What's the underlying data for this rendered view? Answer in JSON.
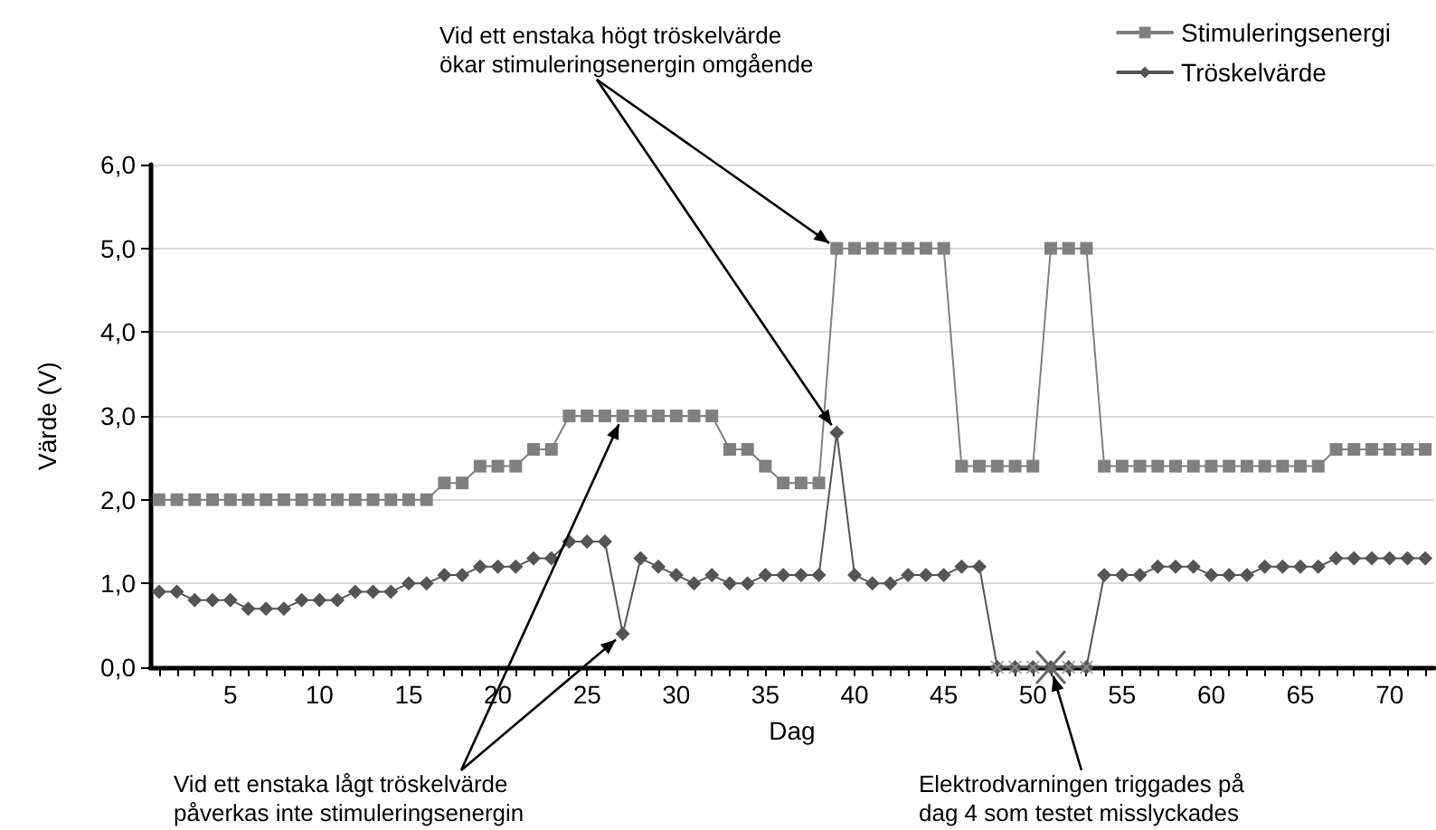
{
  "chart_data": {
    "type": "line",
    "xlabel": "Dag",
    "ylabel": "Värde (V)",
    "x": [
      1,
      2,
      3,
      4,
      5,
      6,
      7,
      8,
      9,
      10,
      11,
      12,
      13,
      14,
      15,
      16,
      17,
      18,
      19,
      20,
      21,
      22,
      23,
      24,
      25,
      26,
      27,
      28,
      29,
      30,
      31,
      32,
      33,
      34,
      35,
      36,
      37,
      38,
      39,
      40,
      41,
      42,
      43,
      44,
      45,
      46,
      47,
      48,
      49,
      50,
      51,
      52,
      53,
      54,
      55,
      56,
      57,
      58,
      59,
      60,
      61,
      62,
      63,
      64,
      65,
      66,
      67,
      68,
      69,
      70,
      71,
      72
    ],
    "series": [
      {
        "name": "Stimuleringsenergi",
        "color": "#808080",
        "marker": "square",
        "values": [
          2.0,
          2.0,
          2.0,
          2.0,
          2.0,
          2.0,
          2.0,
          2.0,
          2.0,
          2.0,
          2.0,
          2.0,
          2.0,
          2.0,
          2.0,
          2.0,
          2.2,
          2.2,
          2.4,
          2.4,
          2.4,
          2.6,
          2.6,
          3.0,
          3.0,
          3.0,
          3.0,
          3.0,
          3.0,
          3.0,
          3.0,
          3.0,
          2.6,
          2.6,
          2.4,
          2.2,
          2.2,
          2.2,
          5.0,
          5.0,
          5.0,
          5.0,
          5.0,
          5.0,
          5.0,
          2.4,
          2.4,
          2.4,
          2.4,
          2.4,
          5.0,
          5.0,
          5.0,
          2.4,
          2.4,
          2.4,
          2.4,
          2.4,
          2.4,
          2.4,
          2.4,
          2.4,
          2.4,
          2.4,
          2.4,
          2.4,
          2.6,
          2.6,
          2.6,
          2.6,
          2.6,
          2.6
        ]
      },
      {
        "name": "Tröskelvärde",
        "color": "#555555",
        "marker": "diamond",
        "values": [
          0.9,
          0.9,
          0.8,
          0.8,
          0.8,
          0.7,
          0.7,
          0.7,
          0.8,
          0.8,
          0.8,
          0.9,
          0.9,
          0.9,
          1.0,
          1.0,
          1.1,
          1.1,
          1.2,
          1.2,
          1.2,
          1.3,
          1.3,
          1.5,
          1.5,
          1.5,
          0.4,
          1.3,
          1.2,
          1.1,
          1.0,
          1.1,
          1.0,
          1.0,
          1.1,
          1.1,
          1.1,
          1.1,
          2.8,
          1.1,
          1.0,
          1.0,
          1.1,
          1.1,
          1.1,
          1.2,
          1.2,
          0,
          0,
          0,
          0,
          0,
          0,
          1.1,
          1.1,
          1.1,
          1.2,
          1.2,
          1.2,
          1.1,
          1.1,
          1.1,
          1.2,
          1.2,
          1.2,
          1.2,
          1.3,
          1.3,
          1.3,
          1.3,
          1.3,
          1.3
        ]
      },
      {
        "type": "scatter",
        "color": "#999999",
        "marker": "cross",
        "x": [
          48,
          49,
          50,
          51,
          52,
          53
        ],
        "values": [
          0,
          0,
          0,
          0,
          0,
          0
        ]
      }
    ],
    "xlim": [
      0.5,
      72.5
    ],
    "xticks": [
      {
        "value": 1,
        "label": null
      },
      {
        "value": 2,
        "label": null
      },
      {
        "value": 3,
        "label": null
      },
      {
        "value": 4,
        "label": null
      },
      5,
      {
        "value": 6,
        "label": null
      },
      {
        "value": 7,
        "label": null
      },
      {
        "value": 8,
        "label": null
      },
      {
        "value": 9,
        "label": null
      },
      10,
      {
        "value": 11,
        "label": null
      },
      {
        "value": 12,
        "label": null
      },
      {
        "value": 13,
        "label": null
      },
      {
        "value": 14,
        "label": null
      },
      15,
      {
        "value": 16,
        "label": null
      },
      {
        "value": 17,
        "label": null
      },
      {
        "value": 18,
        "label": null
      },
      {
        "value": 19,
        "label": null
      },
      20,
      {
        "value": 21,
        "label": null
      },
      {
        "value": 22,
        "label": null
      },
      {
        "value": 23,
        "label": null
      },
      {
        "value": 24,
        "label": null
      },
      25,
      {
        "value": 26,
        "label": null
      },
      {
        "value": 27,
        "label": null
      },
      {
        "value": 28,
        "label": null
      },
      {
        "value": 29,
        "label": null
      },
      30,
      {
        "value": 31,
        "label": null
      },
      {
        "value": 32,
        "label": null
      },
      {
        "value": 33,
        "label": null
      },
      {
        "value": 34,
        "label": null
      },
      35,
      {
        "value": 36,
        "label": null
      },
      {
        "value": 37,
        "label": null
      },
      {
        "value": 38,
        "label": null
      },
      {
        "value": 39,
        "label": null
      },
      40,
      {
        "value": 41,
        "label": null
      },
      {
        "value": 42,
        "label": null
      },
      {
        "value": 43,
        "label": null
      },
      {
        "value": 44,
        "label": null
      },
      45,
      {
        "value": 46,
        "label": null
      },
      {
        "value": 47,
        "label": null
      },
      {
        "value": 48,
        "label": null
      },
      {
        "value": 49,
        "label": null
      },
      50,
      {
        "value": 51,
        "label": null
      },
      {
        "value": 52,
        "label": null
      },
      {
        "value": 53,
        "label": null
      },
      {
        "value": 54,
        "label": null
      },
      55,
      {
        "value": 56,
        "label": null
      },
      {
        "value": 57,
        "label": null
      },
      {
        "value": 58,
        "label": null
      },
      {
        "value": 59,
        "label": null
      },
      60,
      {
        "value": 61,
        "label": null
      },
      {
        "value": 62,
        "label": null
      },
      {
        "value": 63,
        "label": null
      },
      {
        "value": 64,
        "label": null
      },
      65,
      {
        "value": 66,
        "label": null
      },
      {
        "value": 67,
        "label": null
      },
      {
        "value": 68,
        "label": null
      },
      {
        "value": 69,
        "label": null
      },
      70,
      {
        "value": 71,
        "label": null
      },
      {
        "value": 72,
        "label": null
      }
    ],
    "ylim": [
      0,
      6
    ],
    "yticks": [
      {
        "value": 0,
        "label": "0,0"
      },
      {
        "value": 1,
        "label": "1,0"
      },
      {
        "value": 2,
        "label": "2,0"
      },
      {
        "value": 3,
        "label": "3,0"
      },
      {
        "value": 4,
        "label": "4,0"
      },
      {
        "value": 5,
        "label": "5,0"
      },
      {
        "value": 6,
        "label": "6,0"
      }
    ],
    "grid": "y",
    "legend": "top right",
    "annotations": [
      {
        "text": "Vid ett enstaka högt tröskelvärde\nökar stimuleringsenergin omgående",
        "x": 39,
        "y": 2.8
      },
      {
        "text": "Vid ett enstaka lågt tröskelvärde\npåverkas inte stimuleringsenergin",
        "x": 27,
        "y": 0.4
      },
      {
        "text": "Elektrodvarningen triggades på\ndag 4 som testet misslyckades",
        "x": 51,
        "y": 0
      }
    ]
  }
}
